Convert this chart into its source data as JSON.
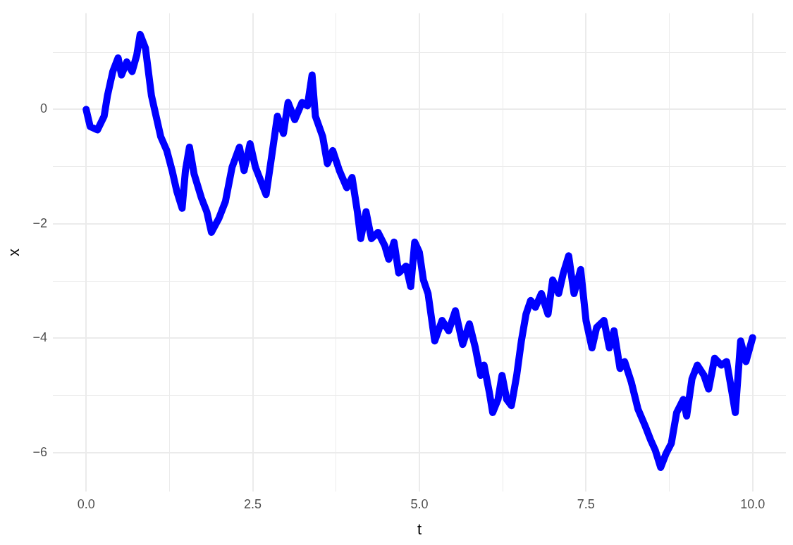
{
  "chart_data": {
    "type": "line",
    "xlabel": "t",
    "ylabel": "x",
    "xlim": [
      -0.5,
      10.5
    ],
    "ylim": [
      -6.68,
      1.68
    ],
    "xticks": [
      {
        "value": 0,
        "label": "0.0"
      },
      {
        "value": 1.25,
        "label": null
      },
      {
        "value": 2.5,
        "label": "2.5"
      },
      {
        "value": 3.75,
        "label": null
      },
      {
        "value": 5,
        "label": "5.0"
      },
      {
        "value": 6.25,
        "label": null
      },
      {
        "value": 7.5,
        "label": "7.5"
      },
      {
        "value": 8.75,
        "label": null
      },
      {
        "value": 10,
        "label": "10.0"
      }
    ],
    "yticks": [
      {
        "value": -6,
        "label": "−6"
      },
      {
        "value": -5,
        "label": null
      },
      {
        "value": -4,
        "label": "−4"
      },
      {
        "value": -3,
        "label": null
      },
      {
        "value": -2,
        "label": "−2"
      },
      {
        "value": -1,
        "label": null
      },
      {
        "value": 0,
        "label": "0"
      },
      {
        "value": 1,
        "label": null
      }
    ],
    "grid": true,
    "legend": false,
    "marker": "none",
    "line_style": "solid",
    "x": [
      0,
      0.06,
      0.17,
      0.27,
      0.32,
      0.4,
      0.48,
      0.53,
      0.61,
      0.69,
      0.76,
      0.81,
      0.89,
      0.98,
      1.05,
      1.12,
      1.21,
      1.29,
      1.36,
      1.44,
      1.49,
      1.55,
      1.62,
      1.73,
      1.81,
      1.88,
      1.99,
      2.09,
      2.19,
      2.3,
      2.37,
      2.46,
      2.54,
      2.64,
      2.7,
      2.79,
      2.87,
      2.96,
      3.03,
      3.13,
      3.24,
      3.32,
      3.39,
      3.44,
      3.55,
      3.62,
      3.7,
      3.8,
      3.91,
      3.99,
      4.07,
      4.12,
      4.2,
      4.28,
      4.38,
      4.48,
      4.54,
      4.62,
      4.69,
      4.8,
      4.87,
      4.93,
      5,
      5.06,
      5.13,
      5.23,
      5.34,
      5.44,
      5.54,
      5.65,
      5.75,
      5.84,
      5.92,
      5.97,
      6.05,
      6.1,
      6.18,
      6.24,
      6.31,
      6.38,
      6.46,
      6.53,
      6.6,
      6.67,
      6.74,
      6.83,
      6.93,
      7,
      7.09,
      7.16,
      7.24,
      7.32,
      7.42,
      7.5,
      7.59,
      7.66,
      7.77,
      7.85,
      7.92,
      8.01,
      8.08,
      8.18,
      8.28,
      8.39,
      8.47,
      8.54,
      8.62,
      8.7,
      8.78,
      8.86,
      8.96,
      9.01,
      9.09,
      9.17,
      9.27,
      9.34,
      9.43,
      9.53,
      9.61,
      9.69,
      9.74,
      9.82,
      9.9,
      10
    ],
    "series": [
      {
        "color": "#0000ff",
        "values": [
          0,
          -0.3,
          -0.36,
          -0.12,
          0.24,
          0.66,
          0.9,
          0.6,
          0.83,
          0.66,
          0.95,
          1.31,
          1.07,
          0.24,
          -0.12,
          -0.48,
          -0.72,
          -1.07,
          -1.43,
          -1.73,
          -1.07,
          -0.66,
          -1.13,
          -1.55,
          -1.79,
          -2.15,
          -1.91,
          -1.61,
          -1.01,
          -0.66,
          -1.07,
          -0.6,
          -1.01,
          -1.31,
          -1.49,
          -0.77,
          -0.12,
          -0.42,
          0.12,
          -0.18,
          0.12,
          0.06,
          0.6,
          -0.12,
          -0.48,
          -0.95,
          -0.72,
          -1.07,
          -1.37,
          -1.19,
          -1.79,
          -2.26,
          -1.79,
          -2.26,
          -2.15,
          -2.38,
          -2.62,
          -2.32,
          -2.86,
          -2.74,
          -3.1,
          -2.32,
          -2.5,
          -2.98,
          -3.22,
          -4.05,
          -3.69,
          -3.87,
          -3.52,
          -4.11,
          -3.75,
          -4.17,
          -4.65,
          -4.47,
          -4.95,
          -5.3,
          -5.07,
          -4.65,
          -5.07,
          -5.18,
          -4.65,
          -4.05,
          -3.58,
          -3.34,
          -3.46,
          -3.22,
          -3.58,
          -2.98,
          -3.22,
          -2.86,
          -2.56,
          -3.22,
          -2.8,
          -3.69,
          -4.17,
          -3.81,
          -3.69,
          -4.17,
          -3.87,
          -4.53,
          -4.41,
          -4.77,
          -5.24,
          -5.54,
          -5.78,
          -5.96,
          -6.26,
          -6.02,
          -5.84,
          -5.3,
          -5.07,
          -5.36,
          -4.71,
          -4.47,
          -4.65,
          -4.89,
          -4.35,
          -4.47,
          -4.41,
          -4.95,
          -5.3,
          -4.05,
          -4.41,
          -3.99
        ]
      }
    ]
  }
}
